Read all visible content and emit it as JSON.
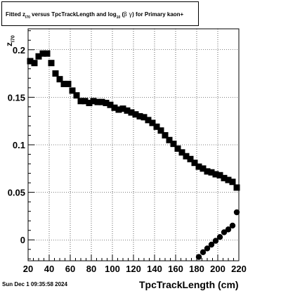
{
  "title": {
    "part1": "Fitted  z",
    "sub1": "I70",
    "part2": "  versus TpcTrackLength and log",
    "sub2": "10",
    "part3": "(",
    "greek": "β γ",
    "part4": ") for Primary kaon+"
  },
  "timestamp": "Sun Dec  1 09:35:58 2024",
  "chart_data": {
    "type": "scatter",
    "title": "Fitted z_I70 versus TpcTrackLength and log10(βγ) for Primary kaon+",
    "xlabel": "TpcTrackLength (cm)",
    "ylabel": "z_I70",
    "ylabel_main": "z",
    "ylabel_sub": "I70",
    "xlim": [
      20,
      220
    ],
    "ylim": [
      -0.022,
      0.222
    ],
    "xticks": [
      20,
      40,
      60,
      80,
      100,
      120,
      140,
      160,
      180,
      200,
      220
    ],
    "xtick_labels": [
      "20",
      "40",
      "60",
      "80",
      "100",
      "120",
      "140",
      "160",
      "180",
      "200",
      "220"
    ],
    "yticks": [
      0,
      0.05,
      0.1,
      0.15,
      0.2
    ],
    "ytick_labels": [
      "0",
      "0.05",
      "0.1",
      "0.15",
      "0.2"
    ],
    "grid": true,
    "series": [
      {
        "marker": "square",
        "color": "#000000",
        "x": [
          22,
          26,
          30,
          34,
          38,
          42,
          46,
          50,
          54,
          58,
          62,
          66,
          70,
          74,
          78,
          82,
          86,
          90,
          94,
          98,
          102,
          106,
          110,
          114,
          118,
          122,
          126,
          130,
          134,
          138,
          142,
          146,
          150,
          154,
          158,
          162,
          166,
          170,
          174,
          178,
          182,
          186,
          190,
          194,
          198,
          202,
          206,
          210,
          214,
          218
        ],
        "y": [
          0.188,
          0.186,
          0.193,
          0.196,
          0.196,
          0.186,
          0.175,
          0.169,
          0.164,
          0.164,
          0.157,
          0.152,
          0.146,
          0.146,
          0.144,
          0.146,
          0.145,
          0.145,
          0.144,
          0.142,
          0.139,
          0.137,
          0.138,
          0.136,
          0.134,
          0.132,
          0.13,
          0.129,
          0.126,
          0.123,
          0.119,
          0.115,
          0.11,
          0.105,
          0.101,
          0.096,
          0.092,
          0.088,
          0.085,
          0.081,
          0.077,
          0.075,
          0.072,
          0.071,
          0.069,
          0.068,
          0.065,
          0.063,
          0.061,
          0.055
        ]
      },
      {
        "marker": "circle",
        "color": "#000000",
        "x": [
          182,
          186,
          190,
          194,
          198,
          202,
          206,
          210,
          214,
          218
        ],
        "y": [
          -0.018,
          -0.013,
          -0.009,
          -0.005,
          -0.001,
          0.003,
          0.008,
          0.011,
          0.015,
          0.029
        ]
      }
    ]
  }
}
